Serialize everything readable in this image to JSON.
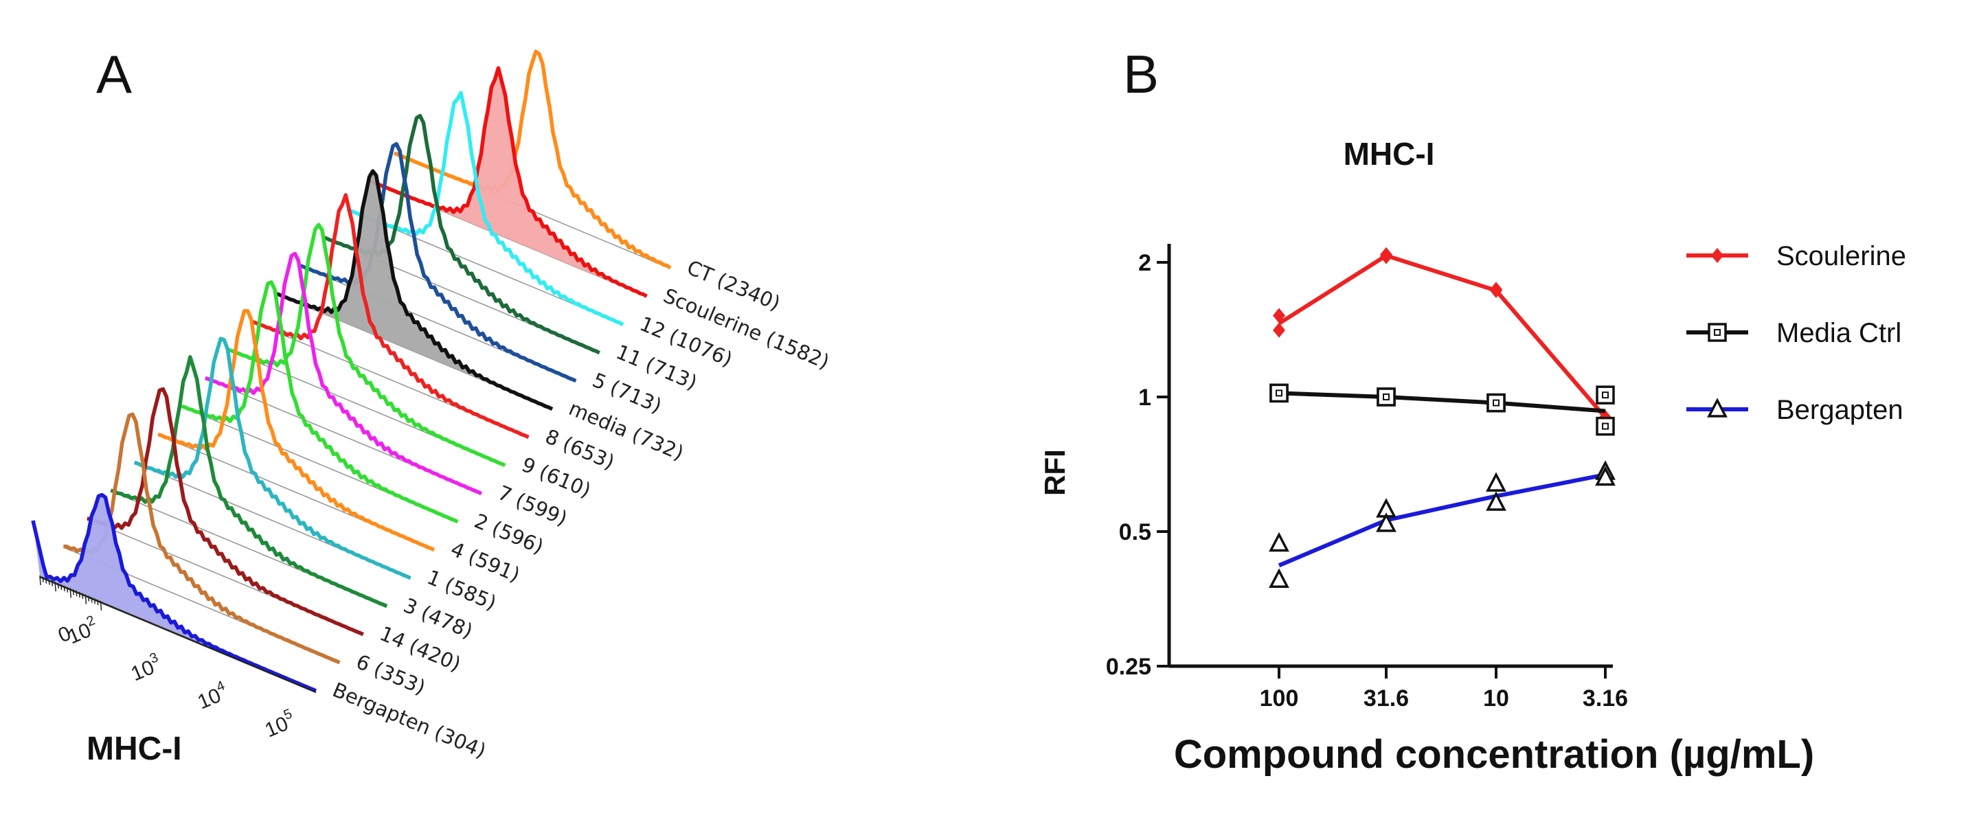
{
  "panel_a": {
    "letter": "A",
    "x_label": "MHC-I",
    "x_ticks": [
      {
        "base": "0",
        "exp": ""
      },
      {
        "base": "10",
        "exp": "2"
      },
      {
        "base": "10",
        "exp": "3"
      },
      {
        "base": "10",
        "exp": "4"
      },
      {
        "base": "10",
        "exp": "5"
      }
    ]
  },
  "panel_b": {
    "letter": "B"
  },
  "chart_data": [
    {
      "type": "area",
      "title": "",
      "xlabel": "MHC-I",
      "description_scale": "log fluorescence (staggered histogram overlay)",
      "series": [
        {
          "name": "Bergapten",
          "label": "Bergapten (304)",
          "mfi": 304,
          "color": "#1a1adb",
          "filled": true,
          "fill": "#a9a8ee"
        },
        {
          "name": "6",
          "label": "6 (353)",
          "mfi": 353,
          "color": "#c87533"
        },
        {
          "name": "14",
          "label": "14 (420)",
          "mfi": 420,
          "color": "#9b1a1a"
        },
        {
          "name": "3",
          "label": "3 (478)",
          "mfi": 478,
          "color": "#1e8a3a"
        },
        {
          "name": "1",
          "label": "1 (585)",
          "mfi": 585,
          "color": "#2bb6c0"
        },
        {
          "name": "4",
          "label": "4 (591)",
          "mfi": 591,
          "color": "#ff8c1a"
        },
        {
          "name": "2",
          "label": "2 (596)",
          "mfi": 596,
          "color": "#33dd33"
        },
        {
          "name": "7",
          "label": "7 (599)",
          "mfi": 599,
          "color": "#ee22ee"
        },
        {
          "name": "9",
          "label": "9 (610)",
          "mfi": 610,
          "color": "#33dd33"
        },
        {
          "name": "8",
          "label": "8 (653)",
          "mfi": 653,
          "color": "#ee2222"
        },
        {
          "name": "media",
          "label": "media (732)",
          "mfi": 732,
          "color": "#111111",
          "filled": true,
          "fill": "#a8a8a8"
        },
        {
          "name": "5",
          "label": "5 (713)",
          "mfi": 713,
          "color": "#1d4f9a"
        },
        {
          "name": "11",
          "label": "11 (713)",
          "mfi": 713,
          "color": "#1d6b3a"
        },
        {
          "name": "12",
          "label": "12 (1076)",
          "mfi": 1076,
          "color": "#33ecf2"
        },
        {
          "name": "Scoulerine",
          "label": "Scoulerine (1582)",
          "mfi": 1582,
          "color": "#ee1111",
          "filled": true,
          "fill": "#f5a8a8"
        },
        {
          "name": "CT",
          "label": "CT (2340)",
          "mfi": 2340,
          "color": "#ff8c1a"
        }
      ]
    },
    {
      "type": "line",
      "title": "MHC-I",
      "xlabel": "Compound  concentration (µg/mL)",
      "ylabel": "RFI",
      "y_scale": "log2",
      "ylim": [
        0.25,
        2.2
      ],
      "y_ticks": [
        "0.25",
        "0.5",
        "1",
        "2"
      ],
      "y_tick_values": [
        0.25,
        0.5,
        1,
        2
      ],
      "categories": [
        "100",
        "31.6",
        "10",
        "3.16"
      ],
      "series": [
        {
          "name": "Scoulerine",
          "marker": "diamond",
          "color": "#ee2222",
          "values": [
            1.46,
            2.07,
            1.73,
            0.9
          ],
          "points": [
            [
              1.52,
              1.41
            ],
            [
              2.08,
              2.06
            ],
            [
              1.74,
              1.73
            ],
            [
              0.9,
              0.9
            ]
          ]
        },
        {
          "name": "Media Ctrl",
          "marker": "square",
          "color": "#111111",
          "values": [
            1.02,
            1.0,
            0.97,
            0.93
          ],
          "points": [
            [
              1.02,
              1.02
            ],
            [
              1.0,
              1.0
            ],
            [
              0.97,
              0.97
            ],
            [
              1.01,
              0.86
            ]
          ]
        },
        {
          "name": "Bergapten",
          "marker": "triangle",
          "color": "#1a1adb",
          "values": [
            0.42,
            0.53,
            0.6,
            0.67
          ],
          "points": [
            [
              0.47,
              0.39
            ],
            [
              0.56,
              0.52
            ],
            [
              0.64,
              0.58
            ],
            [
              0.68,
              0.66
            ]
          ]
        }
      ]
    }
  ]
}
